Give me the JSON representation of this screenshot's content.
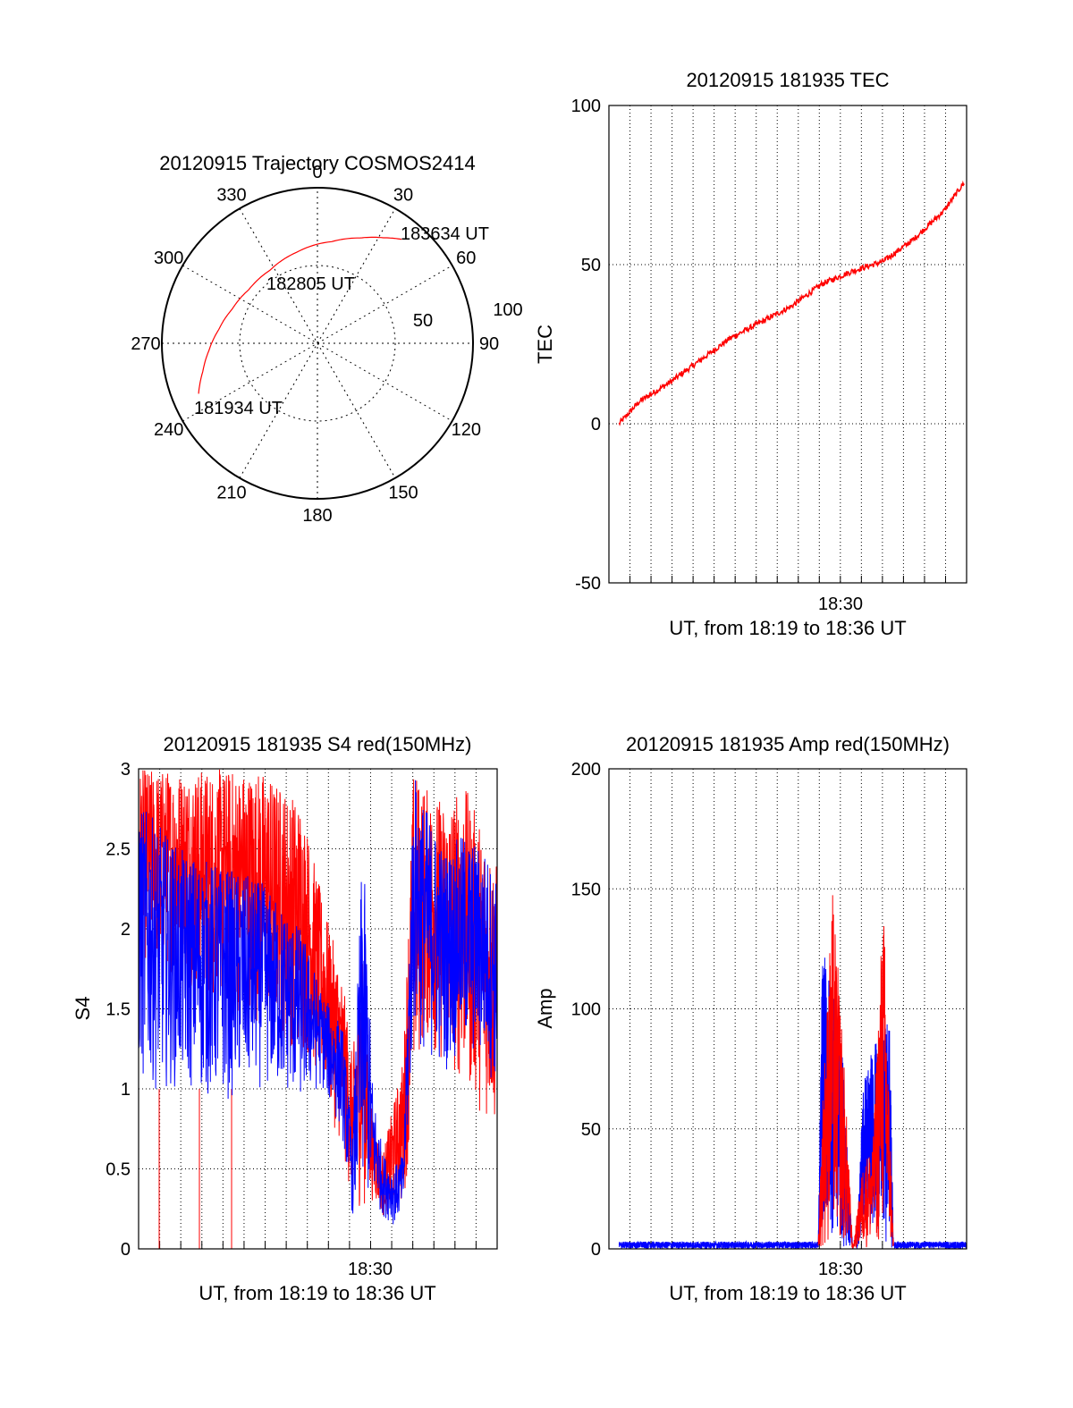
{
  "colors": {
    "red": "#ff0000",
    "blue": "#0000ff",
    "axis": "#000000",
    "grid": "#000000"
  },
  "polar": {
    "title": "20120915 Trajectory COSMOS2414",
    "azimuth_labels": [
      "0",
      "30",
      "60",
      "90",
      "120",
      "150",
      "180",
      "210",
      "240",
      "270",
      "300",
      "330"
    ],
    "elevation_labels": [
      "50",
      "100"
    ],
    "chart_data": {
      "type": "polar-trajectory",
      "azimuth_deg": [
        247,
        256,
        266,
        278,
        292,
        308,
        327,
        347,
        8,
        22,
        32,
        39
      ],
      "radius_norm": [
        0.83,
        0.76,
        0.7,
        0.64,
        0.59,
        0.56,
        0.56,
        0.6,
        0.66,
        0.73,
        0.8,
        0.86
      ],
      "annotations": [
        {
          "text": "181934 UT",
          "az": 247,
          "r": 0.83
        },
        {
          "text": "182805 UT",
          "az": 327,
          "r": 0.56
        },
        {
          "text": "183634 UT",
          "az": 39,
          "r": 0.86
        }
      ]
    }
  },
  "tec": {
    "title": "20120915 181935 TEC",
    "ylabel": "TEC",
    "xlabel": "UT, from 18:19 to 18:36 UT",
    "yticks": [
      "100",
      "50",
      "0",
      "-50"
    ],
    "xtick": "18:30",
    "chart_data": {
      "type": "line",
      "x_minutes": [
        0.5,
        1.5,
        3,
        4.5,
        6,
        7.5,
        9,
        10.5,
        12,
        13.5,
        15,
        16.5,
        17.5
      ],
      "y": [
        0,
        7,
        13,
        20,
        27,
        32,
        37,
        44,
        48,
        51,
        58,
        67,
        76
      ],
      "ylim": [
        -50,
        100
      ],
      "xlim": [
        0,
        17.6
      ],
      "series": [
        {
          "color": "#ff0000"
        }
      ]
    }
  },
  "s4": {
    "title": "20120915 181935 S4 red(150MHz)",
    "ylabel": "S4",
    "xlabel": "UT, from 18:19 to 18:36 UT",
    "yticks": [
      "3",
      "2.5",
      "2",
      "1.5",
      "1",
      "0.5",
      "0"
    ],
    "xtick": "18:30",
    "chart_data": {
      "type": "line",
      "ylim": [
        0,
        3
      ],
      "xlim": [
        0,
        17.6
      ],
      "envelope_red": {
        "x": [
          0,
          2,
          4,
          6,
          8,
          9,
          10,
          10.5,
          11,
          11.5,
          12,
          12.5,
          13,
          13.5,
          14,
          15,
          16,
          17,
          17.6
        ],
        "low": [
          1.8,
          1.7,
          1.5,
          1.4,
          1.2,
          1.0,
          0.6,
          0.25,
          0.25,
          0.3,
          0.2,
          0.2,
          0.25,
          0.9,
          1.3,
          1.1,
          1.0,
          0.8,
          0.7
        ],
        "high": [
          3,
          3,
          3,
          3,
          2.8,
          2.2,
          1.7,
          1.2,
          1.9,
          0.8,
          0.6,
          0.9,
          1.2,
          3,
          2.9,
          2.8,
          2.9,
          2.6,
          2.4
        ]
      },
      "envelope_blue": {
        "x": [
          0,
          2,
          4,
          6,
          8,
          9,
          10,
          10.5,
          11,
          11.5,
          12,
          12.5,
          13,
          13.5,
          14,
          15,
          16,
          17,
          17.6
        ],
        "low": [
          1.0,
          1.0,
          0.9,
          1.0,
          0.9,
          1.0,
          0.7,
          0.2,
          0.2,
          0.3,
          0.2,
          0.15,
          0.2,
          1.3,
          1.2,
          1.1,
          1.2,
          1.1,
          1.0
        ],
        "high": [
          2.8,
          2.5,
          2.4,
          2.3,
          2.0,
          1.6,
          1.4,
          0.7,
          2.6,
          1.0,
          0.6,
          0.5,
          0.6,
          3,
          2.8,
          2.5,
          2.6,
          2.5,
          2.3
        ]
      }
    }
  },
  "amp": {
    "title": "20120915 181935 Amp red(150MHz)",
    "ylabel": "Amp",
    "xlabel": "UT, from 18:19 to 18:36 UT",
    "yticks": [
      "200",
      "150",
      "100",
      "50",
      "0"
    ],
    "xtick": "18:30",
    "chart_data": {
      "type": "line",
      "ylim": [
        0,
        200
      ],
      "xlim": [
        0,
        17.6
      ],
      "envelope_blue": {
        "x": [
          0.5,
          10.3,
          10.5,
          11,
          11.5,
          12,
          12.2,
          12.5,
          13,
          13.5,
          13.8,
          14,
          17.6
        ],
        "low": [
          0,
          0,
          10,
          5,
          0,
          0,
          0,
          5,
          10,
          5,
          0,
          0,
          0
        ],
        "high": [
          3,
          3,
          125,
          110,
          80,
          0,
          0,
          70,
          85,
          90,
          100,
          3,
          3
        ]
      },
      "envelope_red": {
        "x": [
          10.3,
          10.5,
          11,
          11.5,
          12,
          12.5,
          13,
          13.5,
          13.8,
          14
        ],
        "low": [
          0,
          0,
          0,
          0,
          0,
          0,
          0,
          0,
          0,
          0
        ],
        "high": [
          2,
          60,
          150,
          90,
          0,
          35,
          45,
          150,
          60,
          2
        ]
      }
    }
  }
}
